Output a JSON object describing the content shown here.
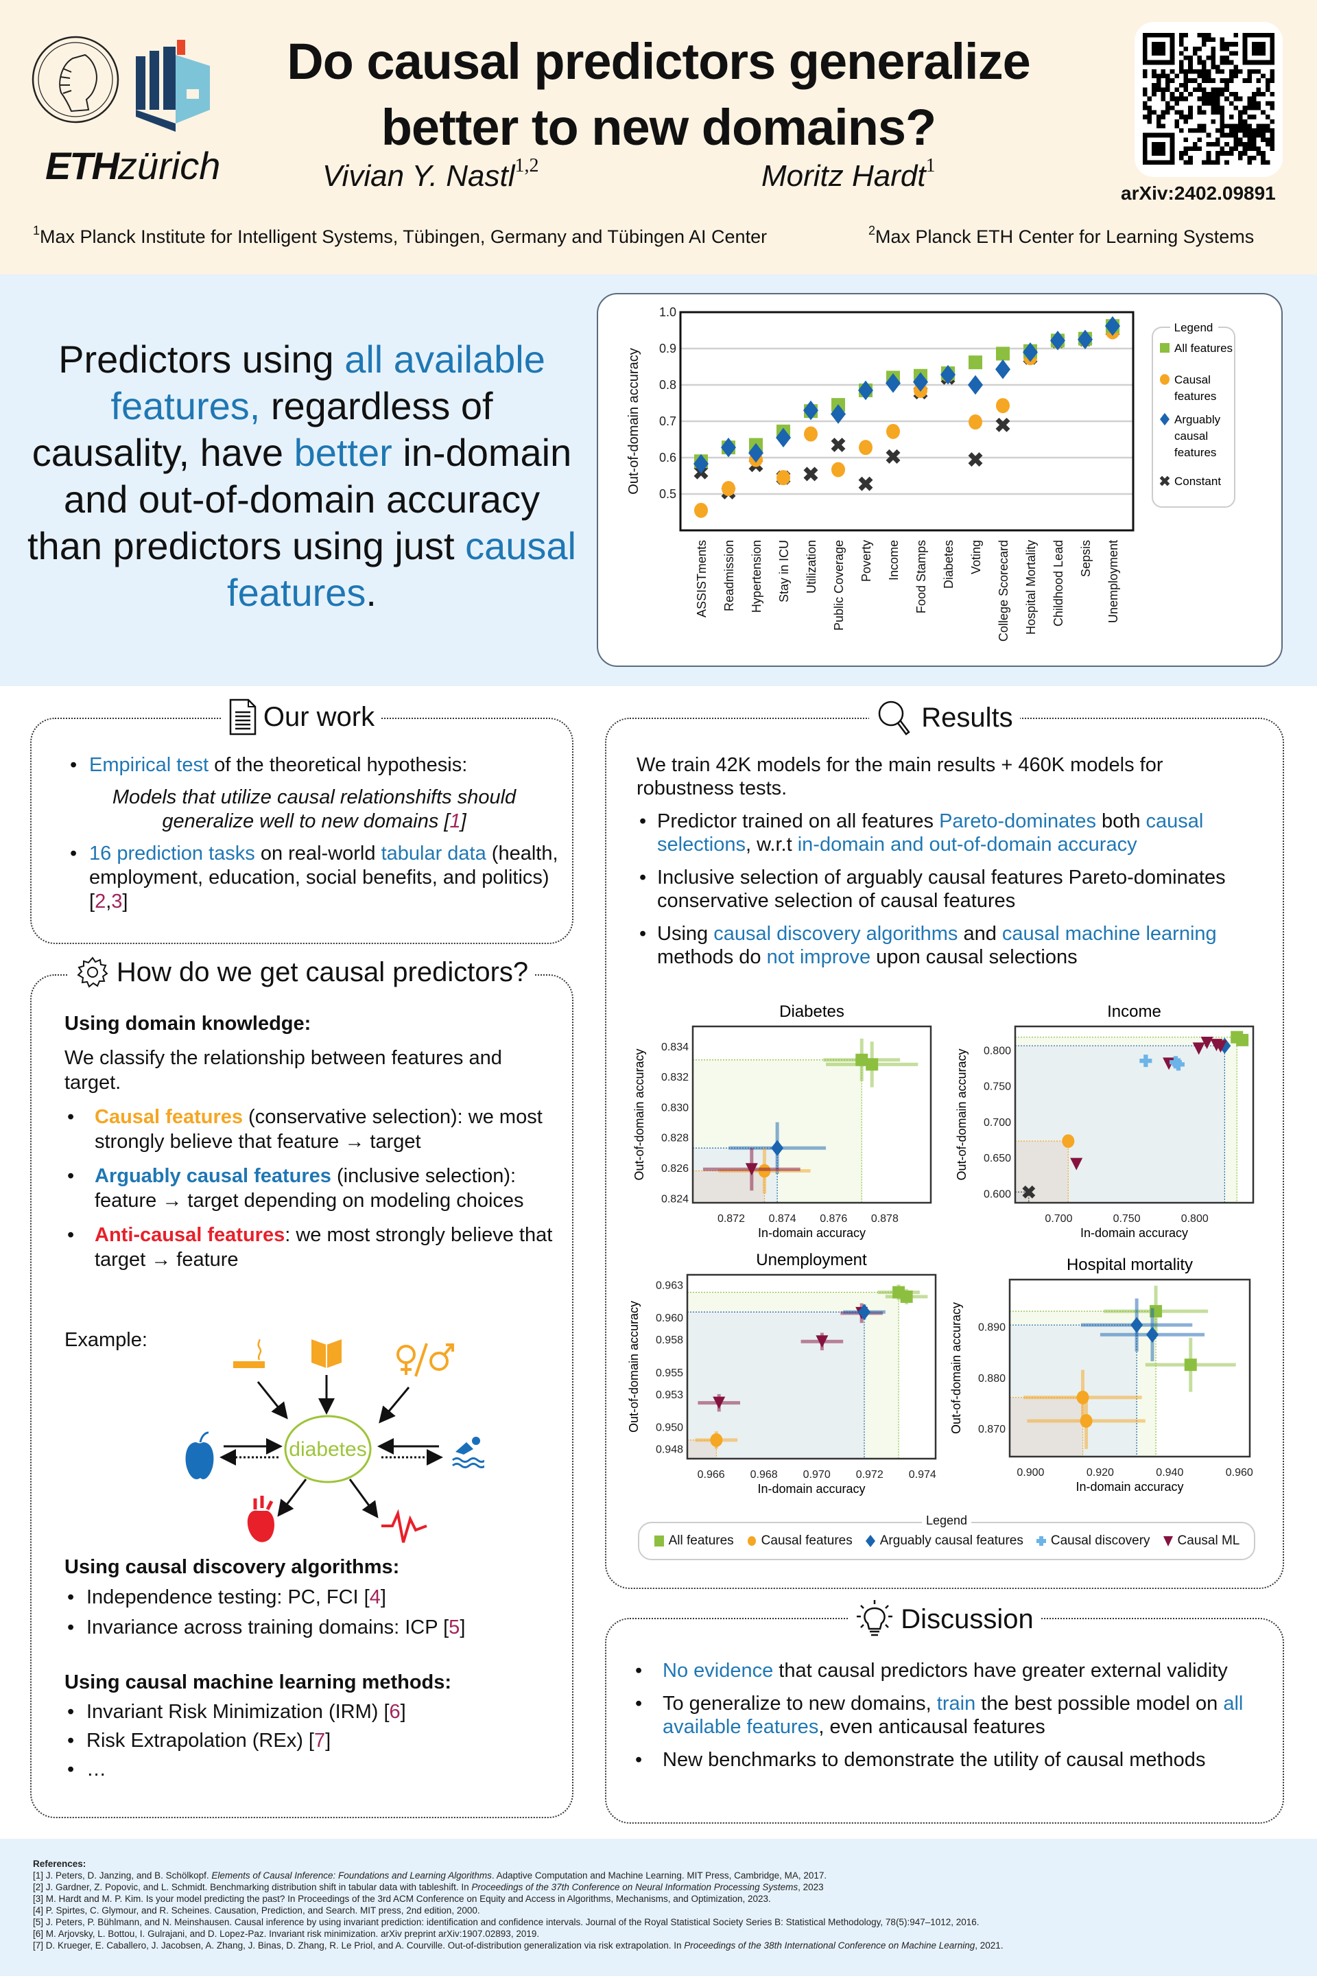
{
  "header": {
    "title_line1": "Do causal predictors generalize",
    "title_line2": "better to new domains?",
    "author1": "Vivian Y. Nastl",
    "author1_sup": "1,2",
    "author2": "Moritz Hardt",
    "author2_sup": "1",
    "affil1_sup": "1",
    "affil1": "Max Planck Institute for Intelligent Systems, Tübingen, Germany and Tübingen AI Center",
    "affil2_sup": "2",
    "affil2": "Max Planck ETH Center for Learning Systems",
    "arxiv": "arXiv:2402.09891",
    "eth_bold": "ETH",
    "eth_light": "zürich",
    "logos": [
      "max-planck-logo",
      "tuebingen-ai-logo",
      "eth-zurich-logo"
    ]
  },
  "claim": {
    "p1": "Predictors using ",
    "h1": "all available features,",
    "p2": " regardless of causality, have ",
    "h2": "better",
    "p3": " in-domain and out-of-domain accuracy than predictors using just ",
    "h3": "causal features",
    "p4": "."
  },
  "colors": {
    "all": "#8cbf3f",
    "causal": "#f5a623",
    "arguably": "#1a64b0",
    "discovery": "#6bb4e8",
    "causalml": "#85133f",
    "constant": "#333333",
    "accent_blue": "#1f77b4"
  },
  "our_work": {
    "heading": "Our work",
    "b1_h": "Empirical test",
    "b1_t": " of the theoretical hypothesis:",
    "quote": "Models that utilize causal relationshifts should generalize well to new domains [",
    "quote_ref": "1",
    "quote_end": "]",
    "b2_h1": "16 prediction tasks",
    "b2_t1": " on real-world ",
    "b2_h2": "tabular data",
    "b2_t2": " (health, employment, education, social benefits, and politics) [",
    "b2_ref1": "2",
    "b2_sep": ",",
    "b2_ref2": "3",
    "b2_end": "]"
  },
  "how": {
    "heading": "How do we get causal predictors?",
    "domain_h": "Using domain knowledge:",
    "domain_p": "We classify the relationship between features and target.",
    "causal_h": "Causal features",
    "causal_t": " (conservative selection): we most strongly believe that feature → target",
    "arg_h": "Arguably causal features",
    "arg_t": " (inclusive selection): feature → target depending on modeling choices",
    "anti_h": "Anti-causal features",
    "anti_t": ": we most strongly believe that target → feature",
    "example": "Example:",
    "diagram_center": "diabetes",
    "diagram_nodes": [
      "smoking-icon",
      "education-book-icon",
      "gender-icon",
      "diet-apple-icon",
      "exercise-swimming-icon",
      "heart-icon",
      "heartbeat-icon"
    ],
    "disc_h": "Using causal discovery algorithms:",
    "disc_items": [
      {
        "t": "Independence testing: PC, FCI [",
        "r": "4",
        "e": "]"
      },
      {
        "t": "Invariance across training domains: ICP [",
        "r": "5",
        "e": "]"
      }
    ],
    "ml_h": "Using causal machine learning methods:",
    "ml_items": [
      {
        "t": "Invariant Risk Minimization (IRM) [",
        "r": "6",
        "e": "]"
      },
      {
        "t": "Risk Extrapolation (REx) [",
        "r": "7",
        "e": "]"
      },
      {
        "t": "…",
        "r": "",
        "e": ""
      }
    ]
  },
  "results": {
    "heading": "Results",
    "intro": "We train 42K models for the main results + 460K models for robustness tests.",
    "b1_t1": "Predictor trained on all features ",
    "b1_h1": "Pareto-dominates",
    "b1_t2": " both ",
    "b1_h2": "causal selections",
    "b1_t3": ", w.r.t ",
    "b1_h3": "in-domain and out-of-domain accuracy",
    "b2": "Inclusive selection of arguably causal features Pareto-dominates conservative selection of causal features",
    "b3_t1": "Using ",
    "b3_h1": "causal discovery algorithms",
    "b3_t2": " and ",
    "b3_h2": "causal machine learning",
    "b3_t3": " methods do ",
    "b3_h3": "not improve",
    "b3_t4": " upon causal selections",
    "legend_title": "Legend",
    "legend": [
      "All features",
      "Causal features",
      "Arguably causal features",
      "Causal discovery",
      "Causal ML"
    ]
  },
  "discussion": {
    "heading": "Discussion",
    "b1_h": "No evidence",
    "b1_t": " that causal predictors have greater external validity",
    "b2_t1": "To generalize to new domains, ",
    "b2_h1": "train",
    "b2_t2": " the best possible model on ",
    "b2_h2": "all available features",
    "b2_t3": ", even anticausal features",
    "b3": "New benchmarks to demonstrate the utility of causal methods"
  },
  "references": {
    "heading": "References:",
    "items": [
      {
        "pre": "[1] J. Peters, D. Janzing, and B. Schölkopf. ",
        "it": "Elements of Causal Inference: Foundations and Learning Algorithms",
        "post": ". Adaptive Computation and Machine Learning. MIT Press, Cambridge, MA, 2017."
      },
      {
        "pre": "[2] J. Gardner, Z. Popovic, and L. Schmidt. Benchmarking distribution shift in tabular data with tableshift. In ",
        "it": "Proceedings of the 37th Conference on Neural Information Processing Systems",
        "post": ", 2023"
      },
      {
        "pre": "[3] M. Hardt and M. P. Kim. Is your model predicting the past? In Proceedings of the 3rd ACM Conference on Equity and Access in Algorithms, Mechanisms, and Optimization, 2023.",
        "it": "",
        "post": ""
      },
      {
        "pre": "[4] P. Spirtes, C. Glymour, and R. Scheines. Causation, Prediction, and Search. MIT press, 2nd edition, 2000.",
        "it": "",
        "post": ""
      },
      {
        "pre": "[5] J. Peters, P. Bühlmann, and N. Meinshausen. Causal inference by using invariant prediction: identification and confidence intervals. Journal of the Royal Statistical Society Series B: Statistical Methodology, 78(5):947–1012, 2016.",
        "it": "",
        "post": ""
      },
      {
        "pre": "[6] M. Arjovsky, L. Bottou, I. Gulrajani, and D. Lopez-Paz. Invariant risk minimization. arXiv preprint arXiv:1907.02893, 2019.",
        "it": "",
        "post": ""
      },
      {
        "pre": "[7] D. Krueger, E. Caballero, J. Jacobsen, A. Zhang, J. Binas, D. Zhang, R. Le Priol, and A. Courville. Out-of-distribution generalization via risk extrapolation. In ",
        "it": "Proceedings of the 38th International Conference on Machine Learning",
        "post": ", 2021."
      }
    ]
  },
  "chart_data": [
    {
      "type": "scatter",
      "title": "",
      "xlabel": "",
      "ylabel": "Out-of-domain accuracy",
      "ylim": [
        0.4,
        1.0
      ],
      "yticks": [
        0.5,
        0.6,
        0.7,
        0.8,
        0.9,
        1.0
      ],
      "grid": true,
      "legend_title": "Legend",
      "legend_position": "right",
      "categories": [
        "ASSISTments",
        "Readmission",
        "Hypertension",
        "Stay in ICU",
        "Utilization",
        "Public Coverage",
        "Poverty",
        "Income",
        "Food Stamps",
        "Diabetes",
        "Voting",
        "College Scorecard",
        "Hospital Mortality",
        "Childhood Lead",
        "Sepsis",
        "Unemployment"
      ],
      "series": [
        {
          "name": "All features",
          "marker": "square",
          "values": [
            0.59,
            0.628,
            0.635,
            0.672,
            0.728,
            0.745,
            0.785,
            0.82,
            0.825,
            0.832,
            0.862,
            0.886,
            0.893,
            0.922,
            0.927,
            0.962
          ]
        },
        {
          "name": "Causal features",
          "marker": "circle",
          "values": [
            0.455,
            0.515,
            0.595,
            0.545,
            0.665,
            0.567,
            0.628,
            0.672,
            0.785,
            0.828,
            0.698,
            0.743,
            0.875,
            0.92,
            0.925,
            0.946
          ]
        },
        {
          "name": "Arguably causal features",
          "marker": "diamond",
          "values": [
            0.583,
            0.628,
            0.613,
            0.655,
            0.73,
            0.72,
            0.785,
            0.805,
            0.808,
            0.828,
            0.8,
            0.843,
            0.89,
            0.922,
            0.925,
            0.962
          ]
        },
        {
          "name": "Constant",
          "marker": "x",
          "values": [
            0.56,
            0.505,
            0.58,
            0.545,
            0.555,
            0.635,
            0.528,
            0.603,
            0.78,
            0.82,
            0.595,
            0.69,
            0.875,
            0.92,
            0.925,
            0.95
          ]
        }
      ]
    },
    {
      "type": "scatter",
      "title": "Diabetes",
      "xlabel": "In-domain accuracy",
      "ylabel": "Out-of-domain accuracy",
      "xlim": [
        0.8705,
        0.8798
      ],
      "ylim": [
        0.8237,
        0.8353
      ],
      "xticks": [
        0.872,
        0.874,
        0.876,
        0.878
      ],
      "yticks": [
        0.824,
        0.826,
        0.828,
        0.83,
        0.832,
        0.834
      ],
      "points": [
        {
          "series": "All features",
          "x": 0.8771,
          "y": 0.8331,
          "xerr": 0.0015,
          "yerr": 0.0014
        },
        {
          "series": "All features",
          "x": 0.8775,
          "y": 0.8328,
          "xerr": 0.0018,
          "yerr": 0.0015
        },
        {
          "series": "Arguably causal features",
          "x": 0.8738,
          "y": 0.8273,
          "xerr": 0.0019,
          "yerr": 0.0017
        },
        {
          "series": "Causal features",
          "x": 0.8733,
          "y": 0.8258,
          "xerr": 0.0018,
          "yerr": 0.0015
        },
        {
          "series": "Causal ML",
          "x": 0.8728,
          "y": 0.8259,
          "xerr": 0.0019,
          "yerr": 0.0014
        }
      ]
    },
    {
      "type": "scatter",
      "title": "Income",
      "xlabel": "In-domain accuracy",
      "ylabel": "Out-of-domain accuracy",
      "xlim": [
        0.668,
        0.843
      ],
      "ylim": [
        0.587,
        0.833
      ],
      "xticks": [
        0.7,
        0.75,
        0.8
      ],
      "yticks": [
        0.6,
        0.65,
        0.7,
        0.75,
        0.8
      ],
      "points": [
        {
          "series": "All features",
          "x": 0.831,
          "y": 0.818,
          "xerr": 0,
          "yerr": 0
        },
        {
          "series": "All features",
          "x": 0.835,
          "y": 0.814,
          "xerr": 0,
          "yerr": 0
        },
        {
          "series": "Arguably causal features",
          "x": 0.822,
          "y": 0.806,
          "xerr": 0,
          "yerr": 0
        },
        {
          "series": "Causal ML",
          "x": 0.809,
          "y": 0.81,
          "xerr": 0,
          "yerr": 0
        },
        {
          "series": "Causal ML",
          "x": 0.803,
          "y": 0.802,
          "xerr": 0,
          "yerr": 0
        },
        {
          "series": "Causal ML",
          "x": 0.816,
          "y": 0.807,
          "xerr": 0,
          "yerr": 0
        },
        {
          "series": "Causal ML",
          "x": 0.819,
          "y": 0.805,
          "xerr": 0,
          "yerr": 0
        },
        {
          "series": "Causal ML",
          "x": 0.781,
          "y": 0.781,
          "xerr": 0,
          "yerr": 0
        },
        {
          "series": "Causal ML",
          "x": 0.713,
          "y": 0.641,
          "xerr": 0,
          "yerr": 0
        },
        {
          "series": "Causal discovery",
          "x": 0.764,
          "y": 0.785,
          "xerr": 0,
          "yerr": 0
        },
        {
          "series": "Causal discovery",
          "x": 0.786,
          "y": 0.783,
          "xerr": 0,
          "yerr": 0
        },
        {
          "series": "Causal discovery",
          "x": 0.788,
          "y": 0.78,
          "xerr": 0,
          "yerr": 0
        },
        {
          "series": "Causal features",
          "x": 0.707,
          "y": 0.673,
          "xerr": 0,
          "yerr": 0
        },
        {
          "series": "Constant",
          "x": 0.678,
          "y": 0.602,
          "xerr": 0,
          "yerr": 0
        }
      ]
    },
    {
      "type": "scatter",
      "title": "Unemployment",
      "xlabel": "In-domain accuracy",
      "ylabel": "Out-of-domain accuracy",
      "xlim": [
        0.9651,
        0.9745
      ],
      "ylim": [
        0.9471,
        0.9639
      ],
      "xticks": [
        0.966,
        0.968,
        0.97,
        0.972,
        0.974
      ],
      "yticks": [
        0.948,
        0.95,
        0.953,
        0.955,
        0.958,
        0.96,
        0.963
      ],
      "points": [
        {
          "series": "All features",
          "x": 0.9731,
          "y": 0.9623,
          "xerr": 0.0008,
          "yerr": 0.0007
        },
        {
          "series": "All features",
          "x": 0.9734,
          "y": 0.9619,
          "xerr": 0.0008,
          "yerr": 0.0007
        },
        {
          "series": "Causal ML",
          "x": 0.9717,
          "y": 0.9604,
          "xerr": 0.0008,
          "yerr": 0.0009
        },
        {
          "series": "Arguably causal features",
          "x": 0.9718,
          "y": 0.9605,
          "xerr": 0.0008,
          "yerr": 0.0007
        },
        {
          "series": "Causal ML",
          "x": 0.9702,
          "y": 0.9578,
          "xerr": 0.0008,
          "yerr": 0.0008
        },
        {
          "series": "Causal ML",
          "x": 0.9663,
          "y": 0.9522,
          "xerr": 0.0008,
          "yerr": 0.0008
        },
        {
          "series": "Causal features",
          "x": 0.9662,
          "y": 0.9488,
          "xerr": 0.0008,
          "yerr": 0.0008
        }
      ]
    },
    {
      "type": "scatter",
      "title": "Hospital mortality",
      "xlabel": "In-domain accuracy",
      "ylabel": "Out-of-domain accuracy",
      "xlim": [
        0.894,
        0.963
      ],
      "ylim": [
        0.8645,
        0.8992
      ],
      "xticks": [
        0.9,
        0.92,
        0.94,
        0.96
      ],
      "yticks": [
        0.87,
        0.88,
        0.89
      ],
      "points": [
        {
          "series": "All features",
          "x": 0.936,
          "y": 0.893,
          "xerr": 0.015,
          "yerr": 0.005
        },
        {
          "series": "All features",
          "x": 0.946,
          "y": 0.8825,
          "xerr": 0.013,
          "yerr": 0.0053
        },
        {
          "series": "Arguably causal features",
          "x": 0.9305,
          "y": 0.8903,
          "xerr": 0.016,
          "yerr": 0.0052
        },
        {
          "series": "Arguably causal features",
          "x": 0.935,
          "y": 0.8884,
          "xerr": 0.015,
          "yerr": 0.0052
        },
        {
          "series": "Causal features",
          "x": 0.915,
          "y": 0.8761,
          "xerr": 0.017,
          "yerr": 0.0054
        },
        {
          "series": "Causal features",
          "x": 0.916,
          "y": 0.8715,
          "xerr": 0.017,
          "yerr": 0.0055
        }
      ]
    }
  ]
}
